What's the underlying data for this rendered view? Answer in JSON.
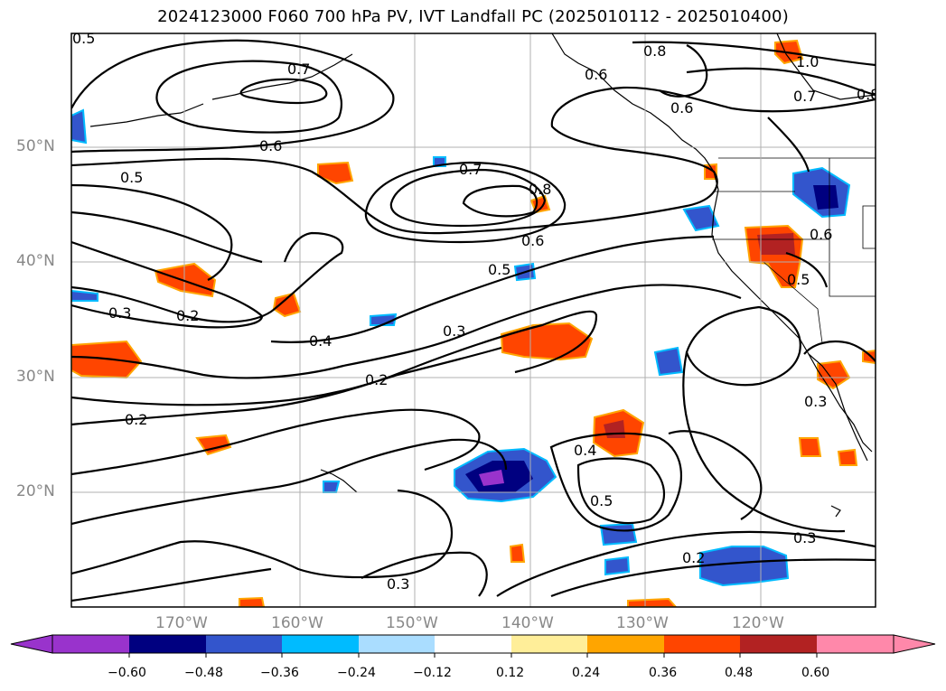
{
  "title": "2024123000 F060 700 hPa PV, IVT Landfall PC (2025010112 - 2025010400)",
  "map": {
    "lat_labels": [
      "50°N",
      "40°N",
      "30°N",
      "20°N"
    ],
    "lon_labels": [
      "170°W",
      "160°W",
      "150°W",
      "140°W",
      "130°W",
      "120°W"
    ],
    "contour_labels": [
      "0.5",
      "0.7",
      "0.8",
      "0.6",
      "1.0",
      "0.7",
      "0.8",
      "0.6",
      "0.6",
      "0.5",
      "0.7",
      "0.8",
      "0.6",
      "0.5",
      "0.6",
      "0.5",
      "0.2",
      "0.3",
      "0.4",
      "0.3",
      "0.2",
      "0.2",
      "0.4",
      "0.5",
      "0.3",
      "0.2",
      "0.3",
      "0.3"
    ]
  },
  "colorbar": {
    "ticks": [
      "−0.60",
      "−0.48",
      "−0.36",
      "−0.24",
      "−0.12",
      "0.12",
      "0.24",
      "0.36",
      "0.48",
      "0.60"
    ],
    "colors": [
      "#9933cc",
      "#000080",
      "#3355cc",
      "#00bbff",
      "#aaddff",
      "#ffffff",
      "#ffee99",
      "#ffa500",
      "#ff4500",
      "#b22222",
      "#ff88aa"
    ]
  }
}
